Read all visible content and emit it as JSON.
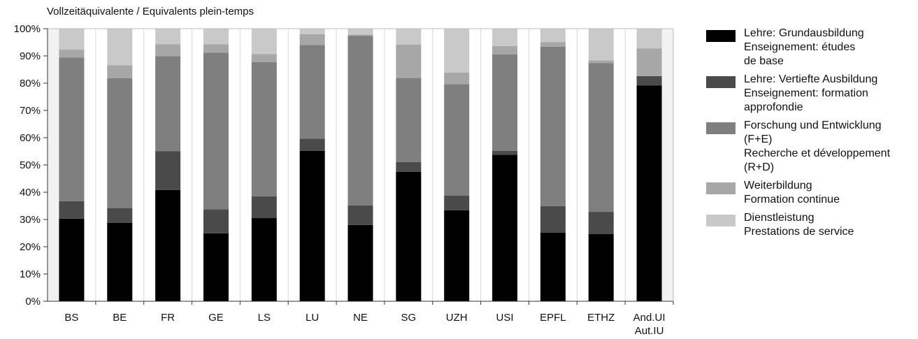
{
  "chart_data": {
    "type": "bar",
    "stacked": true,
    "title": "",
    "ylabel": "Vollzeitäquivalente / Equivalents plein-temps",
    "xlabel": "",
    "ylim": [
      0,
      100
    ],
    "yticks": [
      "0%",
      "10%",
      "20%",
      "30%",
      "40%",
      "50%",
      "60%",
      "70%",
      "80%",
      "90%",
      "100%"
    ],
    "categories": [
      "BS",
      "BE",
      "FR",
      "GE",
      "LS",
      "LU",
      "NE",
      "SG",
      "UZH",
      "USI",
      "EPFL",
      "ETHZ",
      "And.UI Aut.IU"
    ],
    "category_lines": [
      [
        "BS"
      ],
      [
        "BE"
      ],
      [
        "FR"
      ],
      [
        "GE"
      ],
      [
        "LS"
      ],
      [
        "LU"
      ],
      [
        "NE"
      ],
      [
        "SG"
      ],
      [
        "UZH"
      ],
      [
        "USI"
      ],
      [
        "EPFL"
      ],
      [
        "ETHZ"
      ],
      [
        "And.UI",
        "Aut.IU"
      ]
    ],
    "grid": "vertical-bands",
    "legend_position": "right",
    "series": [
      {
        "name": "Lehre: Grundausbildung Enseignement: études de base",
        "label_lines": [
          "Lehre: Grundausbildung",
          "Enseignement: études",
          "de base"
        ],
        "color": "#000000",
        "values": [
          30.3,
          28.8,
          40.8,
          24.9,
          30.5,
          55.2,
          28.0,
          47.5,
          33.4,
          53.7,
          25.2,
          24.7,
          79.1
        ]
      },
      {
        "name": "Lehre: Vertiefte Ausbildung Enseignement: formation approfondie",
        "label_lines": [
          "Lehre: Vertiefte Ausbildung",
          "Enseignement: formation",
          "approfondie"
        ],
        "color": "#4a4a4a",
        "values": [
          6.4,
          5.3,
          14.2,
          8.8,
          8.0,
          4.4,
          7.2,
          3.6,
          5.4,
          1.5,
          9.7,
          8.1,
          3.5
        ]
      },
      {
        "name": "Forschung und Entwicklung (F+E) Recherche et développement (R+D)",
        "label_lines": [
          "Forschung und Entwicklung",
          "(F+E)",
          "Recherche et développement",
          "(R+D)"
        ],
        "color": "#7f7f7f",
        "values": [
          52.7,
          47.7,
          34.9,
          57.5,
          49.2,
          34.4,
          62.2,
          30.8,
          40.8,
          35.4,
          58.5,
          54.6,
          0.0
        ]
      },
      {
        "name": "Weiterbildung Formation continue",
        "label_lines": [
          "Weiterbildung",
          "Formation continue"
        ],
        "color": "#a7a7a7",
        "values": [
          2.9,
          4.8,
          4.4,
          3.1,
          3.0,
          4.0,
          0.4,
          12.2,
          4.3,
          3.0,
          1.6,
          1.0,
          10.1
        ]
      },
      {
        "name": "Dienstleistung Prestations de service",
        "label_lines": [
          "Dienstleistung",
          "Prestations de service"
        ],
        "color": "#c9c9c9",
        "values": [
          7.7,
          13.4,
          5.7,
          5.7,
          9.3,
          2.0,
          2.2,
          5.9,
          16.1,
          6.4,
          5.0,
          11.6,
          7.3
        ]
      }
    ]
  }
}
